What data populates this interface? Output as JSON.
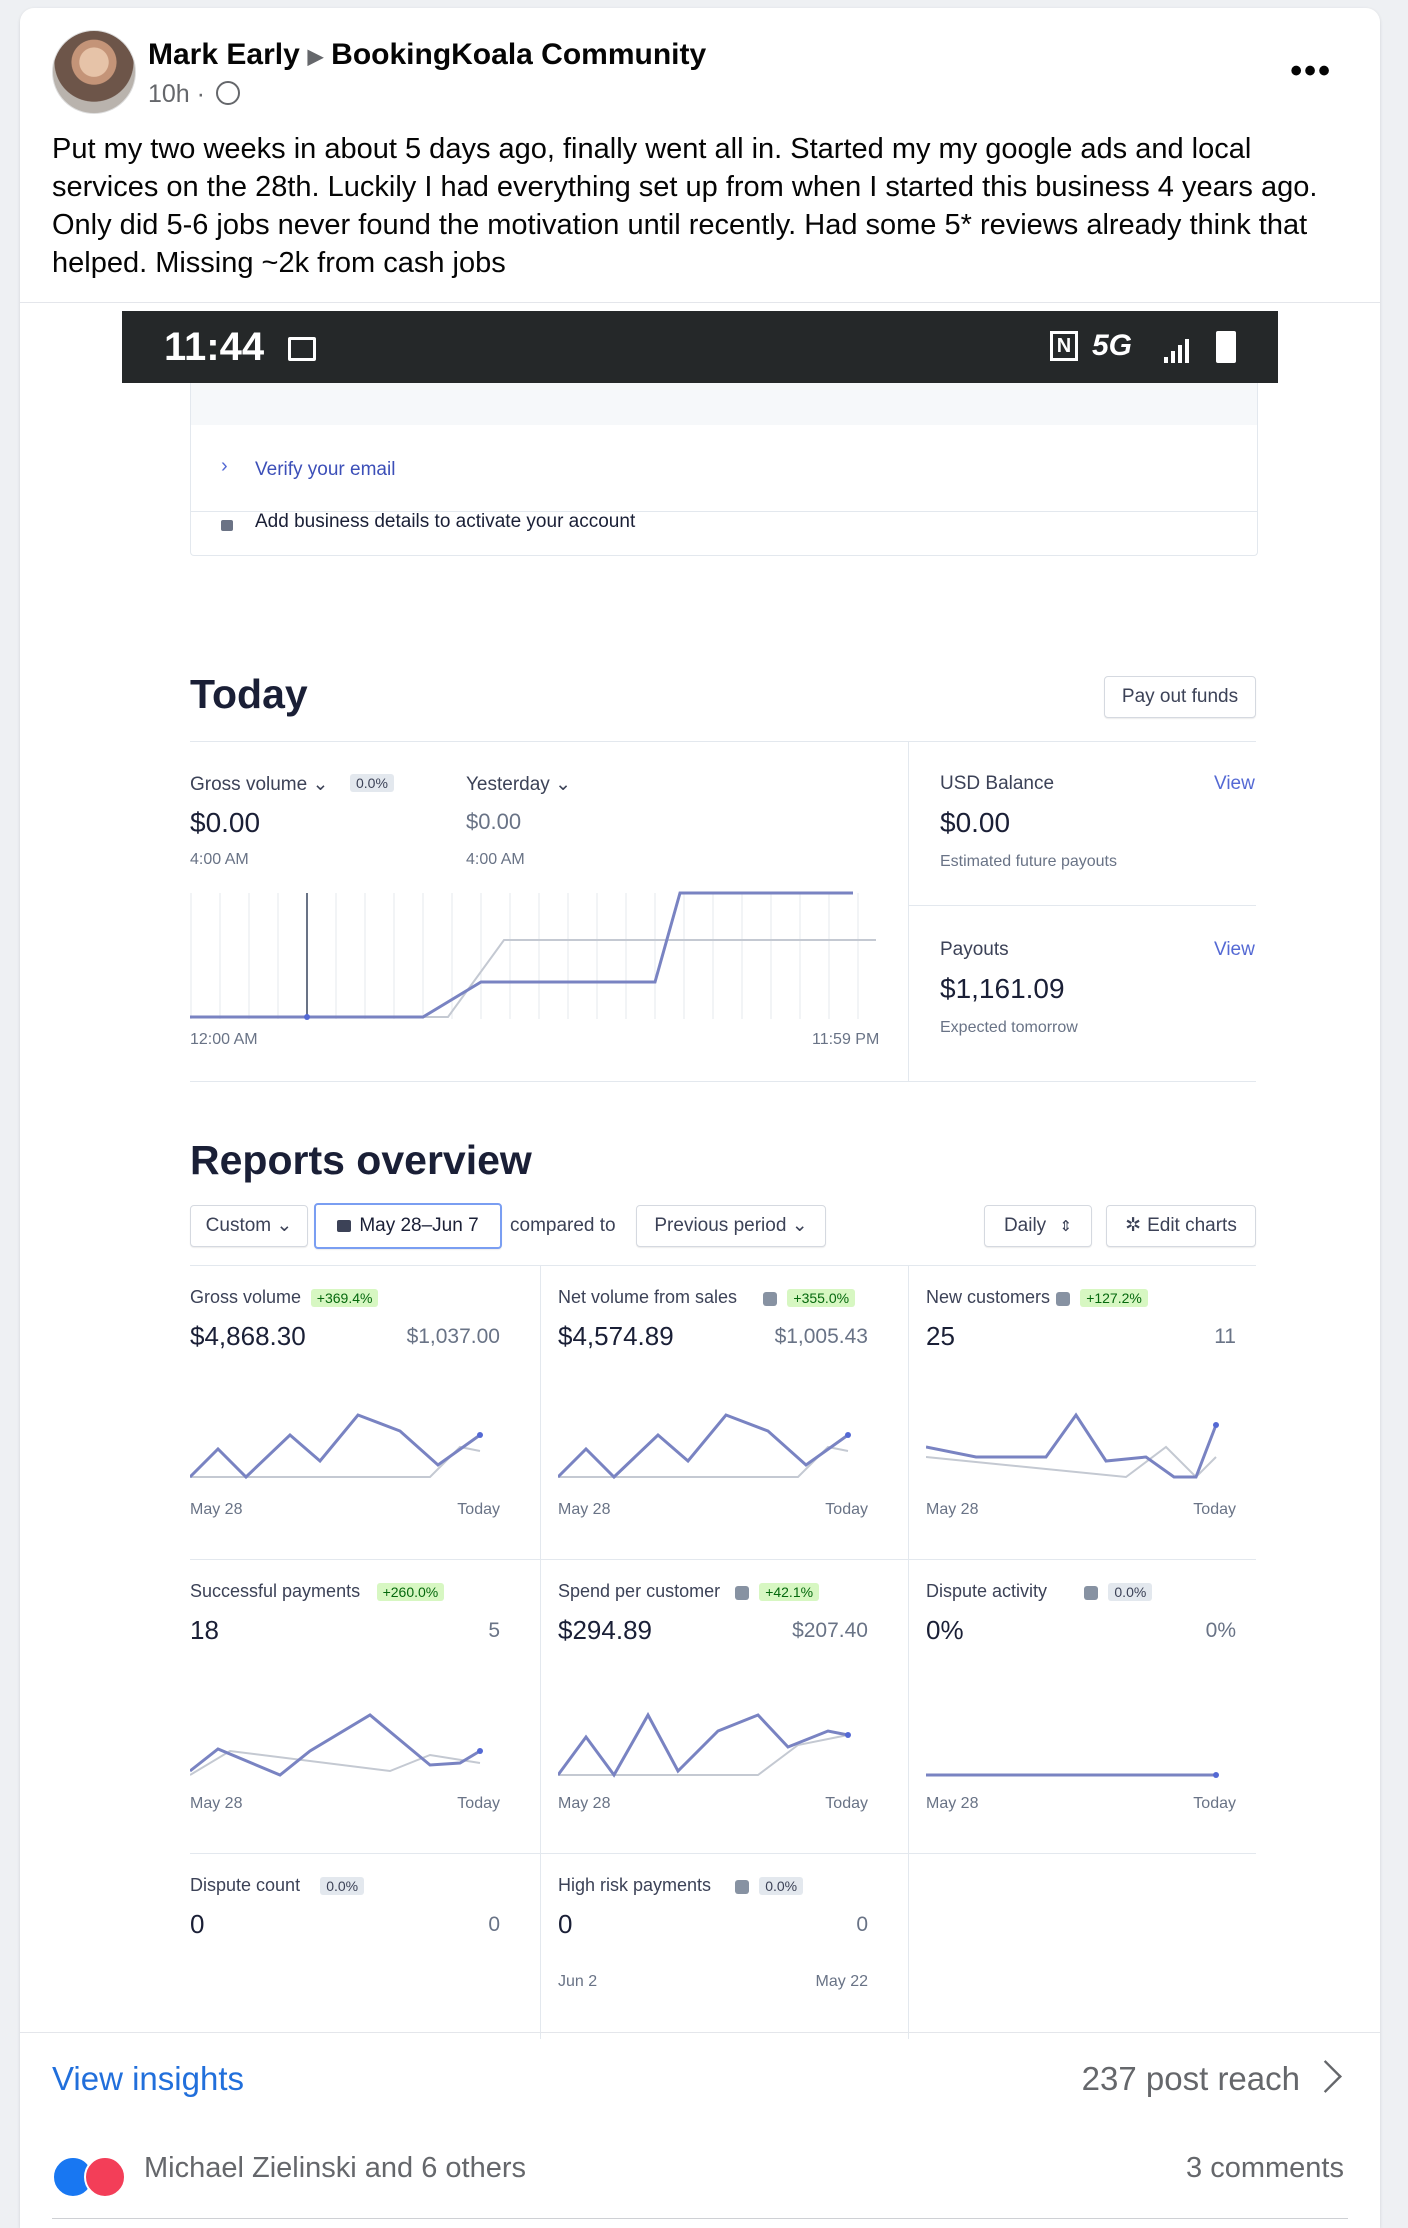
{
  "post": {
    "author": "Mark Early",
    "group": "BookingKoala Community",
    "time": "10h",
    "separator": "·",
    "more_icon": "more-horizontal-icon",
    "text": "Put my two weeks in about 5 days ago, finally went all in. Started my my google ads and local services on the  28th. Luckily I had everything set up from when I started this business 4 years ago. Only did 5-6 jobs never found the motivation until recently. Had some 5* reviews already think that helped. Missing ~2k from cash jobs"
  },
  "phone": {
    "time": "11:44",
    "network": "5G"
  },
  "setup": {
    "verify_email": "Verify your email",
    "business_details": "Add business details to activate your account"
  },
  "today": {
    "title": "Today",
    "payout_button": "Pay out funds",
    "gross_label": "Gross volume",
    "gross_badge": "0.0%",
    "gross_value": "$0.00",
    "gross_time": "4:00 AM",
    "yesterday_label": "Yesterday",
    "yesterday_value": "$0.00",
    "yesterday_time": "4:00 AM",
    "axis_start": "12:00 AM",
    "axis_end": "11:59 PM",
    "usd_label": "USD Balance",
    "usd_view": "View",
    "usd_value": "$0.00",
    "usd_sub": "Estimated future payouts",
    "payouts_label": "Payouts",
    "payouts_view": "View",
    "payouts_value": "$1,161.09",
    "payouts_sub": "Expected tomorrow"
  },
  "reports": {
    "title": "Reports overview",
    "range_select": "Custom",
    "date_range": "May 28–Jun 7",
    "compared_to": "compared to",
    "period_select": "Previous period",
    "interval_select": "Daily",
    "edit_charts": "Edit charts",
    "cards": [
      {
        "label": "Gross volume",
        "badge": "+369.4%",
        "badge_type": "green",
        "info": false,
        "value": "$4,868.30",
        "prev": "$1,037.00",
        "start": "May 28",
        "end": "Today"
      },
      {
        "label": "Net volume from sales",
        "badge": "+355.0%",
        "badge_type": "green",
        "info": true,
        "value": "$4,574.89",
        "prev": "$1,005.43",
        "start": "May 28",
        "end": "Today"
      },
      {
        "label": "New customers",
        "badge": "+127.2%",
        "badge_type": "green",
        "info": true,
        "value": "25",
        "prev": "11",
        "start": "May 28",
        "end": "Today"
      },
      {
        "label": "Successful payments",
        "badge": "+260.0%",
        "badge_type": "green",
        "info": false,
        "value": "18",
        "prev": "5",
        "start": "May 28",
        "end": "Today"
      },
      {
        "label": "Spend per customer",
        "badge": "+42.1%",
        "badge_type": "green",
        "info": true,
        "value": "$294.89",
        "prev": "$207.40",
        "start": "May 28",
        "end": "Today"
      },
      {
        "label": "Dispute activity",
        "badge": "0.0%",
        "badge_type": "gray",
        "info": true,
        "value": "0%",
        "prev": "0%",
        "start": "May 28",
        "end": "Today"
      },
      {
        "label": "Dispute count",
        "badge": "0.0%",
        "badge_type": "gray",
        "info": false,
        "value": "0",
        "prev": "0",
        "start": "",
        "end": ""
      },
      {
        "label": "High risk payments",
        "badge": "0.0%",
        "badge_type": "gray",
        "info": true,
        "value": "0",
        "prev": "0",
        "start": "Jun 2",
        "end": "May 22"
      }
    ]
  },
  "footer": {
    "insights": "View insights",
    "reach": "237 post reach",
    "reactions": "Michael Zielinski and 6 others",
    "comments": "3 comments"
  },
  "colors": {
    "link_blue": "#216fdb",
    "stripe_purple": "#5469d4",
    "series_line": "#7983c2"
  }
}
